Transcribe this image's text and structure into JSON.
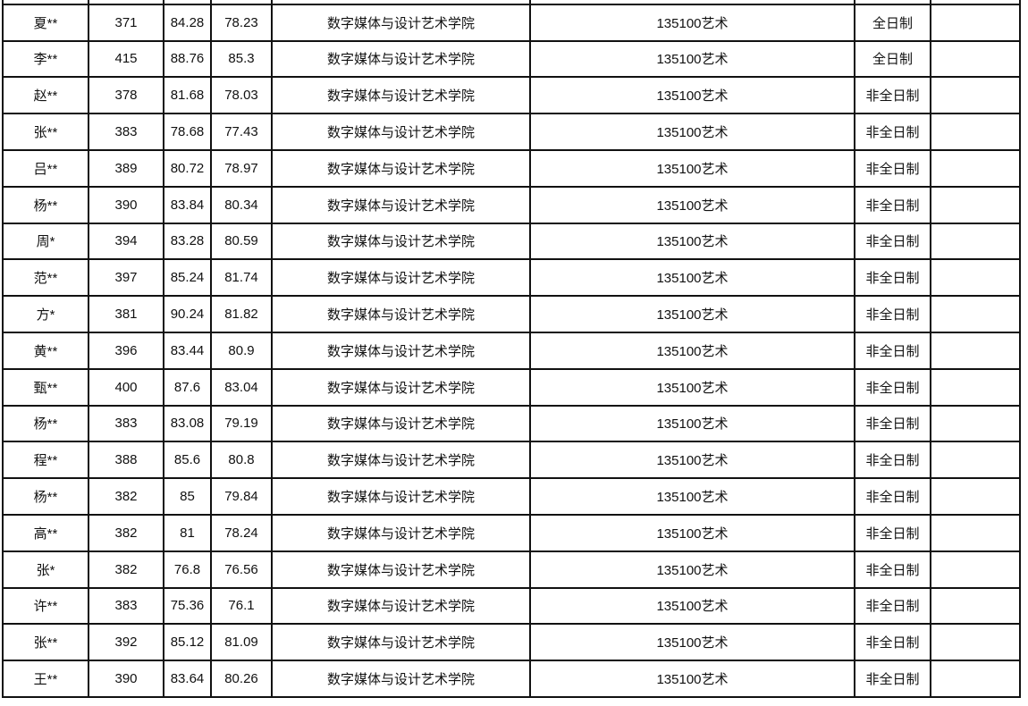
{
  "rows": [
    [
      "夏**",
      "371",
      "84.28",
      "78.23",
      "数字媒体与设计艺术学院",
      "135100艺术",
      "全日制",
      ""
    ],
    [
      "李**",
      "415",
      "88.76",
      "85.3",
      "数字媒体与设计艺术学院",
      "135100艺术",
      "全日制",
      ""
    ],
    [
      "赵**",
      "378",
      "81.68",
      "78.03",
      "数字媒体与设计艺术学院",
      "135100艺术",
      "非全日制",
      ""
    ],
    [
      "张**",
      "383",
      "78.68",
      "77.43",
      "数字媒体与设计艺术学院",
      "135100艺术",
      "非全日制",
      ""
    ],
    [
      "吕**",
      "389",
      "80.72",
      "78.97",
      "数字媒体与设计艺术学院",
      "135100艺术",
      "非全日制",
      ""
    ],
    [
      "杨**",
      "390",
      "83.84",
      "80.34",
      "数字媒体与设计艺术学院",
      "135100艺术",
      "非全日制",
      ""
    ],
    [
      "周*",
      "394",
      "83.28",
      "80.59",
      "数字媒体与设计艺术学院",
      "135100艺术",
      "非全日制",
      ""
    ],
    [
      "范**",
      "397",
      "85.24",
      "81.74",
      "数字媒体与设计艺术学院",
      "135100艺术",
      "非全日制",
      ""
    ],
    [
      "方*",
      "381",
      "90.24",
      "81.82",
      "数字媒体与设计艺术学院",
      "135100艺术",
      "非全日制",
      ""
    ],
    [
      "黄**",
      "396",
      "83.44",
      "80.9",
      "数字媒体与设计艺术学院",
      "135100艺术",
      "非全日制",
      ""
    ],
    [
      "甄**",
      "400",
      "87.6",
      "83.04",
      "数字媒体与设计艺术学院",
      "135100艺术",
      "非全日制",
      ""
    ],
    [
      "杨**",
      "383",
      "83.08",
      "79.19",
      "数字媒体与设计艺术学院",
      "135100艺术",
      "非全日制",
      ""
    ],
    [
      "程**",
      "388",
      "85.6",
      "80.8",
      "数字媒体与设计艺术学院",
      "135100艺术",
      "非全日制",
      ""
    ],
    [
      "杨**",
      "382",
      "85",
      "79.84",
      "数字媒体与设计艺术学院",
      "135100艺术",
      "非全日制",
      ""
    ],
    [
      "高**",
      "382",
      "81",
      "78.24",
      "数字媒体与设计艺术学院",
      "135100艺术",
      "非全日制",
      ""
    ],
    [
      "张*",
      "382",
      "76.8",
      "76.56",
      "数字媒体与设计艺术学院",
      "135100艺术",
      "非全日制",
      ""
    ],
    [
      "许**",
      "383",
      "75.36",
      "76.1",
      "数字媒体与设计艺术学院",
      "135100艺术",
      "非全日制",
      ""
    ],
    [
      "张**",
      "392",
      "85.12",
      "81.09",
      "数字媒体与设计艺术学院",
      "135100艺术",
      "非全日制",
      ""
    ],
    [
      "王**",
      "390",
      "83.64",
      "80.26",
      "数字媒体与设计艺术学院",
      "135100艺术",
      "非全日制",
      ""
    ]
  ]
}
